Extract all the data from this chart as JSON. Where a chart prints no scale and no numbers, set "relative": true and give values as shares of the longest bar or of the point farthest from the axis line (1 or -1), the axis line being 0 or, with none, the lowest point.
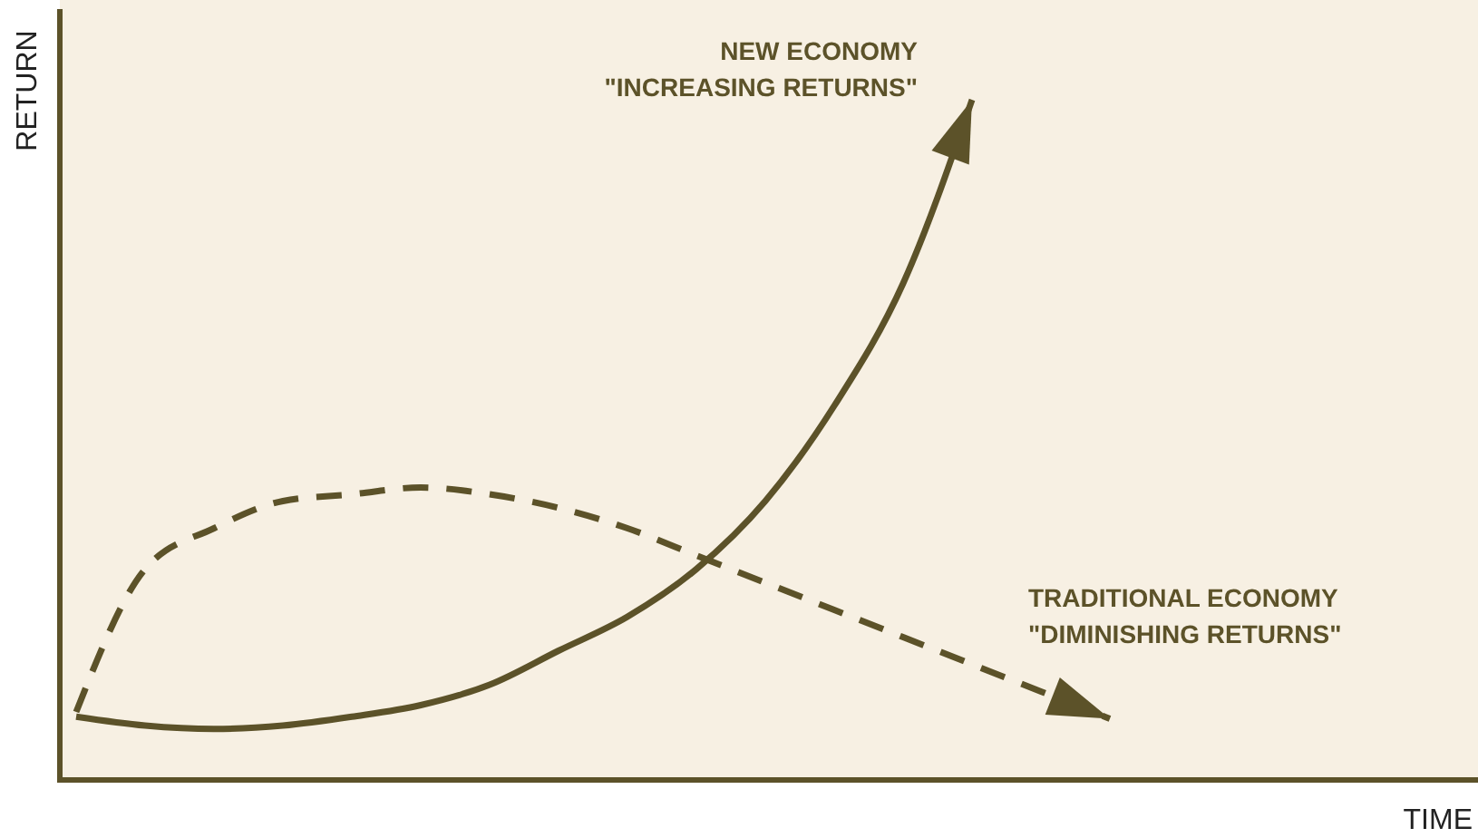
{
  "chart_data": {
    "type": "line",
    "relative": true,
    "xlabel": "TIME",
    "ylabel": "RETURN",
    "marker": "none",
    "categories": [
      null,
      null,
      null,
      null,
      null,
      null,
      null,
      null,
      null,
      null,
      null,
      null,
      null,
      null,
      null,
      null,
      null,
      null,
      null,
      null,
      null
    ],
    "series": [
      {
        "name": "NEW ECONOMY\n\"INCREASING RETURNS\"",
        "color": "#5c5229",
        "line_style": "solid",
        "values": [
          0.093,
          0.08,
          0.075,
          0.08,
          0.093,
          0.11,
          0.14,
          0.19,
          0.24,
          0.31,
          0.41,
          0.55,
          0.73,
          1.0,
          null,
          null,
          null,
          null,
          null,
          null,
          null
        ]
      },
      {
        "name": "TRADITIONAL ECONOMY\n\"DIMINISHING RETURNS\"",
        "color": "#5c5229",
        "line_style": "dashed",
        "values": [
          0.1,
          0.31,
          0.37,
          0.41,
          0.42,
          0.43,
          0.42,
          0.4,
          0.37,
          0.33,
          0.29,
          0.25,
          0.21,
          0.17,
          0.13,
          0.09,
          null,
          null,
          null,
          null,
          null
        ]
      }
    ]
  }
}
